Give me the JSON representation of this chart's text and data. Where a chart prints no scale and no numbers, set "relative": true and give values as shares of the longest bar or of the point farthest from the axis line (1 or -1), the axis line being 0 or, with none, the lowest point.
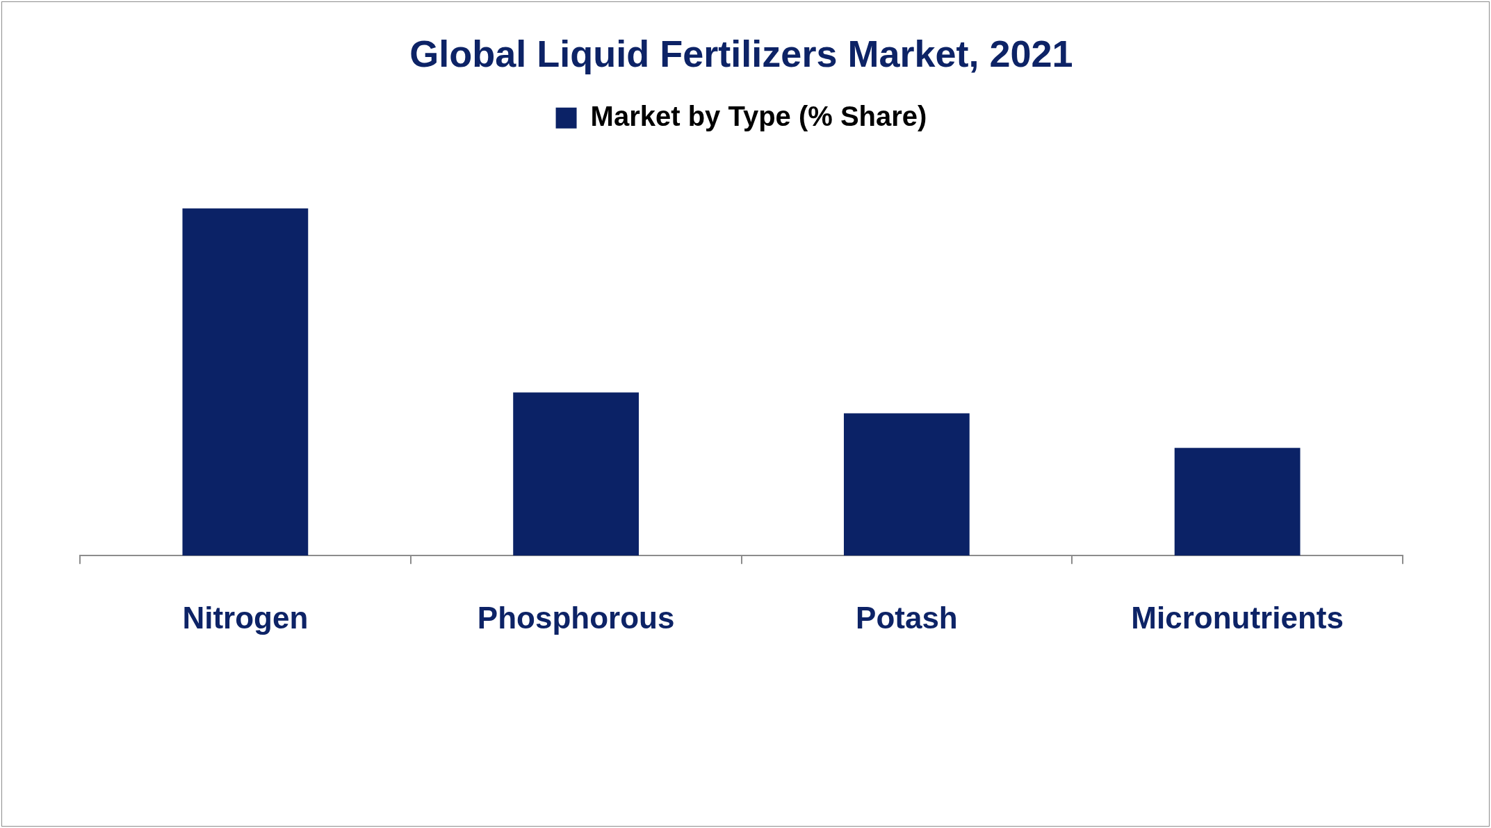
{
  "chart_data": {
    "type": "bar",
    "title": "Global Liquid Fertilizers Market, 2021",
    "categories": [
      "Nitrogen",
      "Phosphorous",
      "Potash",
      "Micronutrients"
    ],
    "series": [
      {
        "name": "Market by Type (% Share)",
        "color": "#0b2266",
        "values": [
          1,
          0.47,
          0.41,
          0.31
        ]
      }
    ],
    "relative": true,
    "legend": "top"
  }
}
